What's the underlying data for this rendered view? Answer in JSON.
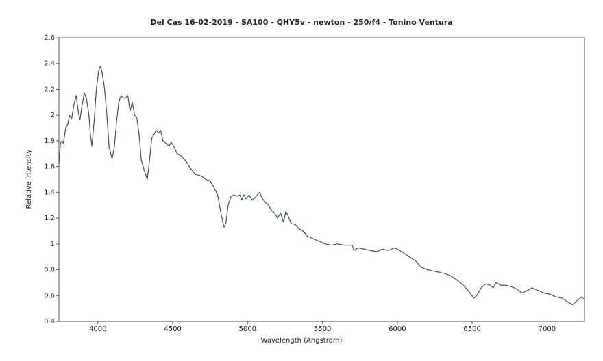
{
  "chart_data": {
    "type": "line",
    "title": "Del Cas 16-02-2019 - SA100 - QHY5v - newton - 250/f4 - Tonino Ventura",
    "x_label": "Wavelength (Angstrom)",
    "y_label": "Relative intensity",
    "xlim": [
      3740,
      7250
    ],
    "ylim": [
      0.4,
      2.6
    ],
    "xticks": [
      4000,
      4500,
      5000,
      5500,
      6000,
      6500,
      7000
    ],
    "yticks": [
      0.4,
      0.6,
      0.8,
      1,
      1.2,
      1.4,
      1.6,
      1.8,
      2,
      2.2,
      2.4,
      2.6
    ],
    "grid": false,
    "series": [
      {
        "color": "#3c5058",
        "x": [
          3740,
          3750,
          3760,
          3770,
          3785,
          3800,
          3810,
          3825,
          3840,
          3855,
          3870,
          3880,
          3895,
          3910,
          3925,
          3940,
          3950,
          3960,
          3975,
          3990,
          4005,
          4018,
          4030,
          4045,
          4060,
          4075,
          4095,
          4110,
          4125,
          4140,
          4155,
          4170,
          4185,
          4200,
          4215,
          4230,
          4245,
          4260,
          4275,
          4290,
          4310,
          4330,
          4345,
          4360,
          4375,
          4390,
          4405,
          4420,
          4435,
          4455,
          4475,
          4490,
          4510,
          4530,
          4560,
          4590,
          4610,
          4630,
          4650,
          4680,
          4700,
          4720,
          4750,
          4770,
          4800,
          4820,
          4842,
          4855,
          4870,
          4890,
          4910,
          4930,
          4950,
          4960,
          4975,
          4990,
          5010,
          5030,
          5050,
          5080,
          5100,
          5120,
          5140,
          5160,
          5180,
          5200,
          5220,
          5240,
          5255,
          5270,
          5290,
          5320,
          5340,
          5370,
          5400,
          5440,
          5480,
          5520,
          5560,
          5600,
          5650,
          5700,
          5710,
          5740,
          5780,
          5820,
          5860,
          5900,
          5940,
          5980,
          6000,
          6030,
          6080,
          6120,
          6160,
          6200,
          6240,
          6280,
          6320,
          6360,
          6400,
          6440,
          6480,
          6510,
          6530,
          6560,
          6590,
          6620,
          6640,
          6660,
          6690,
          6720,
          6760,
          6800,
          6830,
          6870,
          6900,
          6940,
          6980,
          7020,
          7060,
          7100,
          7140,
          7170,
          7200,
          7230,
          7250
        ],
        "values": [
          1.62,
          1.78,
          1.8,
          1.78,
          1.9,
          1.93,
          2.0,
          1.97,
          2.08,
          2.15,
          2.02,
          1.96,
          2.08,
          2.17,
          2.12,
          2.0,
          1.85,
          1.76,
          1.95,
          2.2,
          2.34,
          2.38,
          2.32,
          2.2,
          2.0,
          1.75,
          1.66,
          1.75,
          1.95,
          2.1,
          2.15,
          2.13,
          2.13,
          2.15,
          2.03,
          2.1,
          2.0,
          1.98,
          1.85,
          1.65,
          1.57,
          1.5,
          1.65,
          1.82,
          1.85,
          1.88,
          1.86,
          1.88,
          1.8,
          1.78,
          1.76,
          1.79,
          1.75,
          1.7,
          1.68,
          1.64,
          1.6,
          1.57,
          1.54,
          1.53,
          1.52,
          1.5,
          1.49,
          1.45,
          1.38,
          1.25,
          1.13,
          1.16,
          1.3,
          1.37,
          1.38,
          1.37,
          1.38,
          1.34,
          1.38,
          1.35,
          1.38,
          1.34,
          1.36,
          1.4,
          1.35,
          1.32,
          1.3,
          1.26,
          1.24,
          1.2,
          1.24,
          1.17,
          1.25,
          1.22,
          1.16,
          1.15,
          1.12,
          1.1,
          1.06,
          1.04,
          1.02,
          1.0,
          0.99,
          1.0,
          0.99,
          0.99,
          0.95,
          0.97,
          0.96,
          0.95,
          0.94,
          0.96,
          0.95,
          0.97,
          0.96,
          0.94,
          0.9,
          0.87,
          0.82,
          0.8,
          0.79,
          0.78,
          0.77,
          0.75,
          0.72,
          0.68,
          0.63,
          0.58,
          0.6,
          0.66,
          0.69,
          0.68,
          0.66,
          0.7,
          0.68,
          0.68,
          0.67,
          0.65,
          0.62,
          0.64,
          0.66,
          0.64,
          0.62,
          0.61,
          0.59,
          0.58,
          0.55,
          0.53,
          0.56,
          0.59,
          0.57
        ]
      }
    ]
  }
}
